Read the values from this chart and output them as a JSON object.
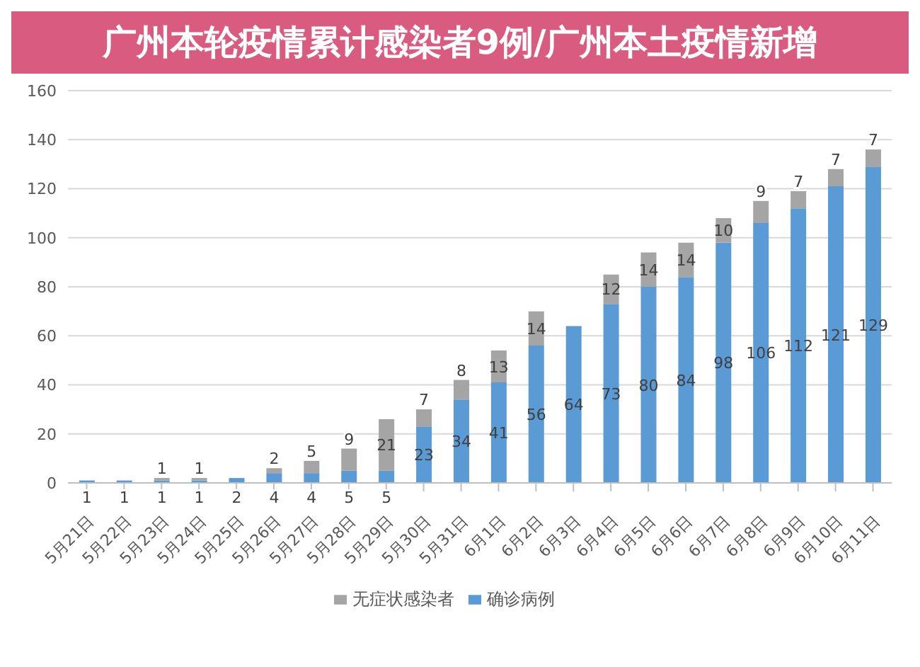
{
  "chart_data": {
    "type": "bar",
    "title": "广州本轮疫情累计感染者9例/广州本土疫情新增",
    "stacked": true,
    "categories": [
      "5月21日",
      "5月22日",
      "5月23日",
      "5月24日",
      "5月25日",
      "5月26日",
      "5月27日",
      "5月28日",
      "5月29日",
      "5月30日",
      "5月31日",
      "6月1日",
      "6月2日",
      "6月3日",
      "6月4日",
      "6月5日",
      "6月6日",
      "6月7日",
      "6月8日",
      "6月9日",
      "6月10日",
      "6月11日"
    ],
    "series": [
      {
        "name": "确诊病例",
        "color": "#5b9bd5",
        "values": [
          1,
          1,
          1,
          1,
          2,
          4,
          4,
          5,
          5,
          23,
          34,
          41,
          56,
          64,
          73,
          80,
          84,
          98,
          106,
          112,
          121,
          129
        ]
      },
      {
        "name": "无症状感染者",
        "color": "#a5a5a5",
        "values": [
          null,
          null,
          1,
          1,
          null,
          2,
          5,
          9,
          21,
          7,
          8,
          13,
          14,
          null,
          12,
          14,
          14,
          10,
          9,
          7,
          7,
          7
        ]
      }
    ],
    "ylim": [
      0,
      160
    ],
    "yticks": [
      0,
      20,
      40,
      60,
      80,
      100,
      120,
      140,
      160
    ],
    "grid": "y",
    "legend": "bottom",
    "data_labels": true
  }
}
